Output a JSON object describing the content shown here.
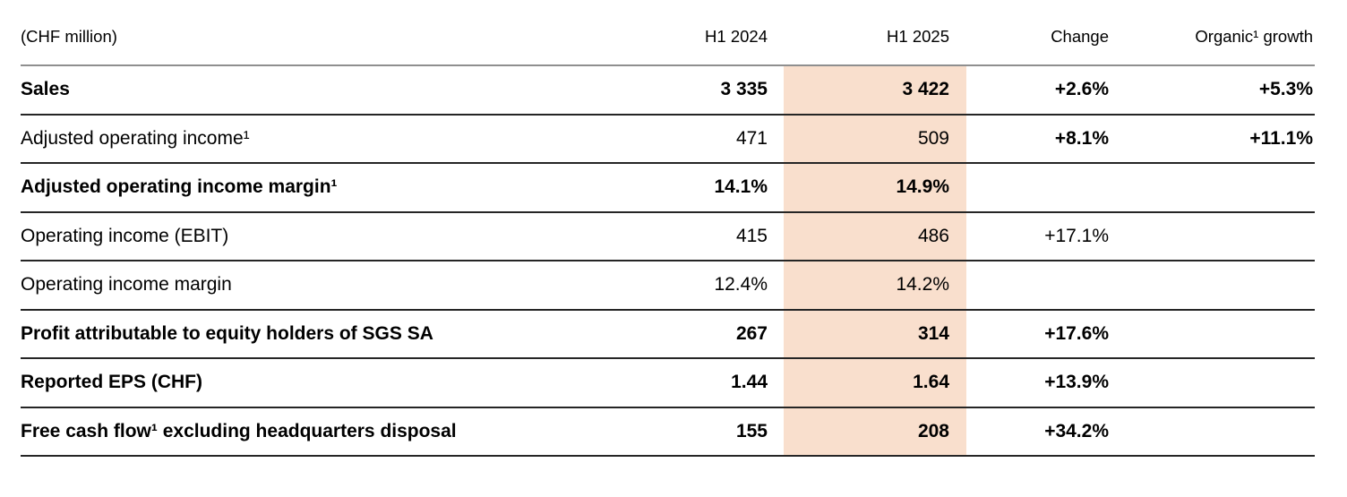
{
  "page": {
    "background": "#ffffff",
    "highlight_color": "#f9dfcd",
    "text_color": "#000000"
  },
  "table": {
    "unit_label": "(CHF million)",
    "column_headers": [
      "H1 2024",
      "H1 2025",
      "Change",
      "Organic¹ growth"
    ],
    "highlighted_column": "H1 2025",
    "rows": [
      {
        "label": "Sales",
        "bold": true,
        "values": [
          {
            "text": "3 335",
            "bold": true
          },
          {
            "text": "3 422",
            "bold": true
          },
          {
            "text": "+2.6%",
            "bold": true
          },
          {
            "text": "+5.3%",
            "bold": true
          }
        ]
      },
      {
        "label": "Adjusted operating income¹",
        "bold": false,
        "values": [
          {
            "text": "471",
            "bold": false
          },
          {
            "text": "509",
            "bold": false
          },
          {
            "text": "+8.1%",
            "bold": true
          },
          {
            "text": "+11.1%",
            "bold": true
          }
        ]
      },
      {
        "label": "Adjusted operating income margin¹",
        "bold": true,
        "values": [
          {
            "text": "14.1%",
            "bold": true
          },
          {
            "text": "14.9%",
            "bold": true
          },
          {
            "text": "",
            "bold": false
          },
          {
            "text": "",
            "bold": false
          }
        ]
      },
      {
        "label": "Operating income (EBIT)",
        "bold": false,
        "values": [
          {
            "text": "415",
            "bold": false
          },
          {
            "text": "486",
            "bold": false
          },
          {
            "text": "+17.1%",
            "bold": false
          },
          {
            "text": "",
            "bold": false
          }
        ]
      },
      {
        "label": "Operating income margin",
        "bold": false,
        "values": [
          {
            "text": "12.4%",
            "bold": false
          },
          {
            "text": "14.2%",
            "bold": false
          },
          {
            "text": "",
            "bold": false
          },
          {
            "text": "",
            "bold": false
          }
        ]
      },
      {
        "label": "Profit attributable to equity holders of SGS SA",
        "bold": true,
        "values": [
          {
            "text": "267",
            "bold": true
          },
          {
            "text": "314",
            "bold": true
          },
          {
            "text": "+17.6%",
            "bold": true
          },
          {
            "text": "",
            "bold": false
          }
        ]
      },
      {
        "label": "Reported EPS (CHF)",
        "bold": true,
        "values": [
          {
            "text": "1.44",
            "bold": true
          },
          {
            "text": "1.64",
            "bold": true
          },
          {
            "text": "+13.9%",
            "bold": true
          },
          {
            "text": "",
            "bold": false
          }
        ]
      },
      {
        "label": "Free cash flow¹ excluding headquarters disposal",
        "bold": true,
        "values": [
          {
            "text": "155",
            "bold": true
          },
          {
            "text": "208",
            "bold": true
          },
          {
            "text": "+34.2%",
            "bold": true
          },
          {
            "text": "",
            "bold": false
          }
        ]
      }
    ]
  }
}
